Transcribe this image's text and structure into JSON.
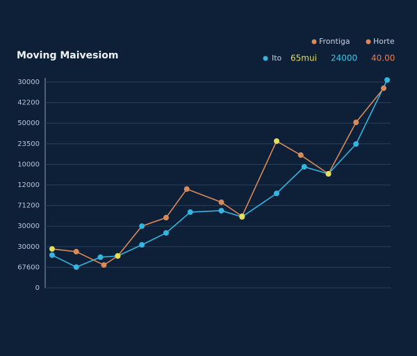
{
  "chart_data": {
    "type": "line",
    "title": "Moving Maivesiom",
    "legend_top": [
      {
        "text": "Frontiga",
        "color": "#e08a5a"
      },
      {
        "text": "Horte",
        "color": "#e08a5a"
      }
    ],
    "annotations": [
      {
        "text": "65mui",
        "color": "#e6df5a"
      },
      {
        "text": "24000",
        "color": "#3cc7e8"
      },
      {
        "text": "40.00",
        "color": "#f07a4a"
      }
    ],
    "xlim": [
      0,
      100
    ],
    "ylim": [
      0,
      10.1
    ],
    "yticks": [
      {
        "value": 0,
        "label": "0"
      },
      {
        "value": 1,
        "label": "67600"
      },
      {
        "value": 2,
        "label": "30000"
      },
      {
        "value": 3,
        "label": "30000"
      },
      {
        "value": 4,
        "label": "71200"
      },
      {
        "value": 5,
        "label": "12000"
      },
      {
        "value": 6,
        "label": "10000"
      },
      {
        "value": 7,
        "label": "23500"
      },
      {
        "value": 8,
        "label": "50000"
      },
      {
        "value": 9,
        "label": "42200"
      },
      {
        "value": 10,
        "label": "30000"
      }
    ],
    "grid": true,
    "series": [
      {
        "name": "Ito",
        "color": "#34b6e0",
        "x": [
          2,
          9,
          16,
          21,
          28,
          35,
          42,
          51,
          57,
          67,
          75,
          82,
          90,
          99
        ],
        "values": [
          1.59,
          1.01,
          1.49,
          1.55,
          2.09,
          2.67,
          3.68,
          3.75,
          3.45,
          4.59,
          5.88,
          5.54,
          6.99,
          10.1
        ],
        "marker_colors": [
          "#34b6e0",
          "#34b6e0",
          "#34b6e0",
          "#e6df5a",
          "#34b6e0",
          "#34b6e0",
          "#34b6e0",
          "#34b6e0",
          "#e6df5a",
          "#34b6e0",
          "#34b6e0",
          "#e6df5a",
          "#34b6e0",
          "#34b6e0"
        ]
      },
      {
        "name": "Frontiga",
        "color": "#d88a5a",
        "x": [
          2,
          9,
          17,
          21,
          28,
          35,
          41,
          51,
          57,
          67,
          74,
          82,
          90,
          98
        ],
        "values": [
          1.89,
          1.76,
          1.11,
          1.55,
          3.0,
          3.41,
          4.8,
          4.16,
          3.48,
          7.13,
          6.45,
          5.54,
          8.04,
          9.7
        ],
        "marker_colors": [
          "#e6df5a",
          "#d88a5a",
          "#d88a5a",
          "#e6df5a",
          "#34b6e0",
          "#d88a5a",
          "#d88a5a",
          "#d88a5a",
          "#e6df5a",
          "#e6df5a",
          "#d88a5a",
          "#e6df5a",
          "#d88a5a",
          "#d88a5a"
        ]
      }
    ]
  }
}
